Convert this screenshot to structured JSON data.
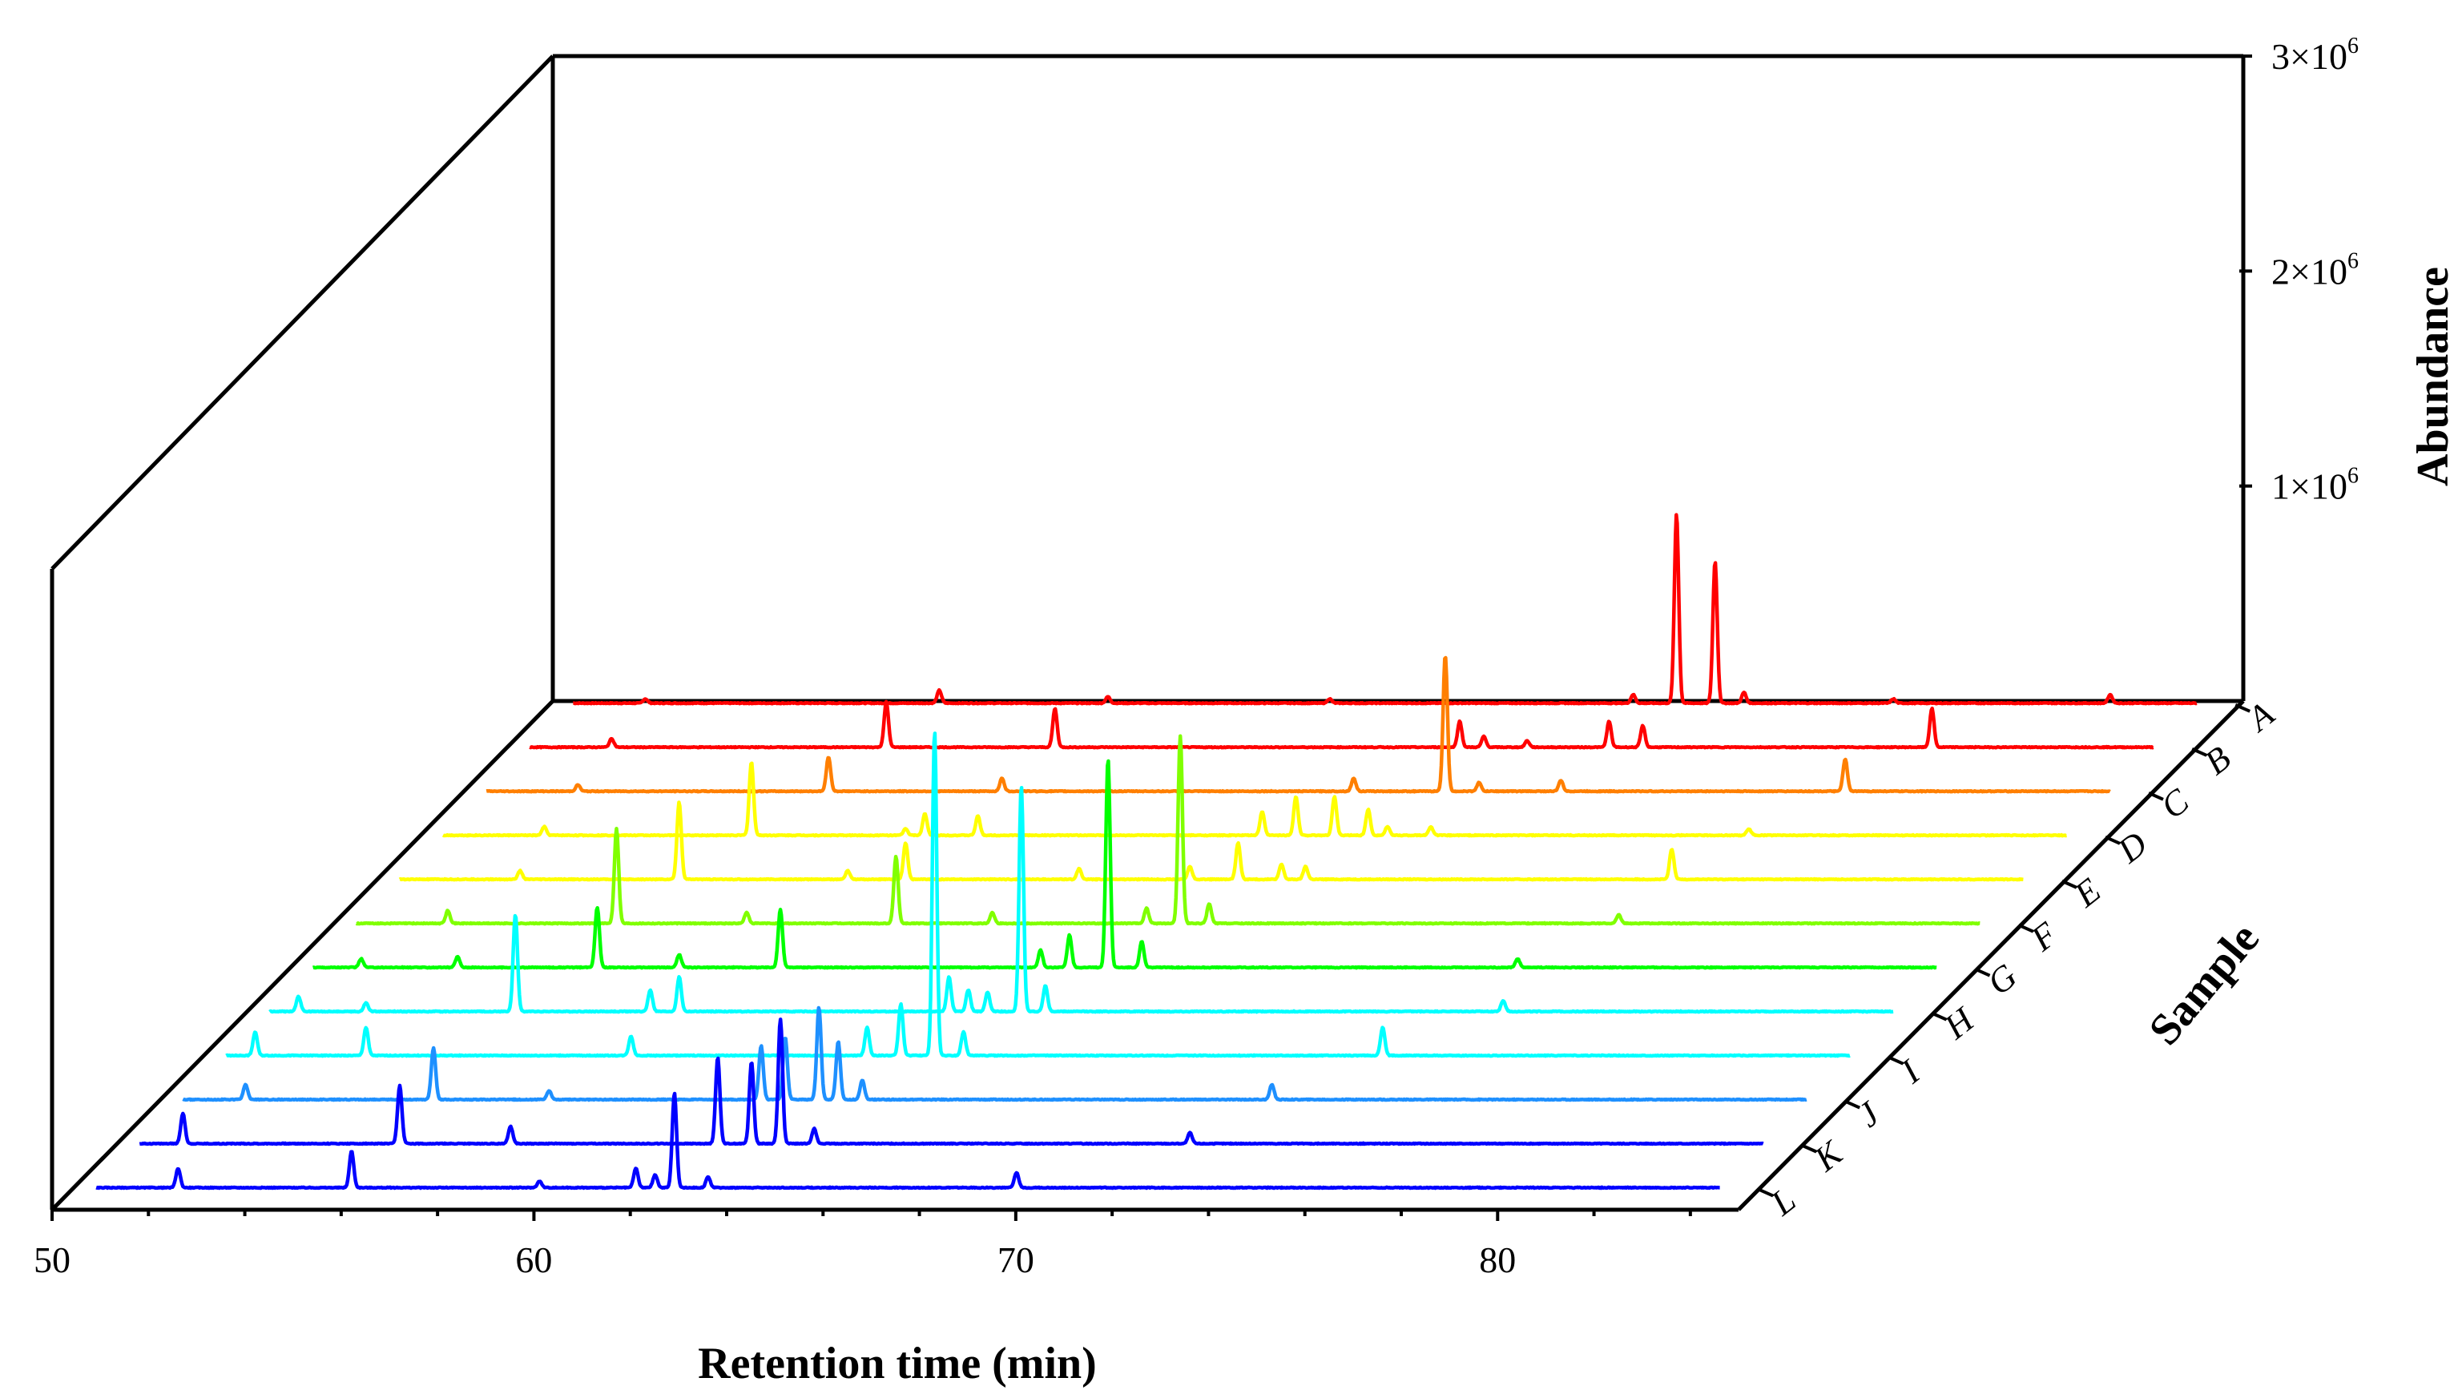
{
  "chart_data": {
    "type": "line",
    "subtype": "3d-waterfall",
    "title": "",
    "xlabel": "Retention time (min)",
    "ylabel": "Sample",
    "zlabel": "Abundance",
    "xlim": [
      50,
      85
    ],
    "zlim": [
      0,
      3000000
    ],
    "x_ticks": [
      50,
      60,
      70,
      80
    ],
    "z_ticks": [
      {
        "value": 1000000,
        "base": "1×10",
        "exp": "6"
      },
      {
        "value": 2000000,
        "base": "2×10",
        "exp": "6"
      },
      {
        "value": 3000000,
        "base": "3×10",
        "exp": "6"
      }
    ],
    "x_range_trace": [
      50.5,
      84.2
    ],
    "series": [
      {
        "name": "A",
        "color": "#ff0000",
        "peaks": [
          [
            52.0,
            0.02
          ],
          [
            58.1,
            0.06
          ],
          [
            61.6,
            0.03
          ],
          [
            66.2,
            0.02
          ],
          [
            72.5,
            0.04
          ],
          [
            73.4,
            0.88
          ],
          [
            74.2,
            0.66
          ],
          [
            74.8,
            0.05
          ],
          [
            77.9,
            0.02
          ],
          [
            82.4,
            0.04
          ]
        ]
      },
      {
        "name": "B",
        "color": "#ff0000",
        "peaks": [
          [
            52.2,
            0.04
          ],
          [
            57.9,
            0.21
          ],
          [
            61.4,
            0.18
          ],
          [
            69.8,
            0.12
          ],
          [
            70.3,
            0.05
          ],
          [
            71.2,
            0.03
          ],
          [
            72.9,
            0.12
          ],
          [
            73.6,
            0.1
          ],
          [
            79.6,
            0.18
          ]
        ]
      },
      {
        "name": "C",
        "color": "#ff7f00",
        "peaks": [
          [
            52.4,
            0.03
          ],
          [
            57.6,
            0.16
          ],
          [
            61.2,
            0.06
          ],
          [
            68.5,
            0.06
          ],
          [
            70.4,
            0.63
          ],
          [
            71.1,
            0.04
          ],
          [
            72.8,
            0.05
          ],
          [
            78.7,
            0.15
          ]
        ]
      },
      {
        "name": "D",
        "color": "#ffff00",
        "peaks": [
          [
            52.6,
            0.04
          ],
          [
            56.9,
            0.34
          ],
          [
            60.1,
            0.03
          ],
          [
            60.5,
            0.1
          ],
          [
            61.6,
            0.09
          ],
          [
            67.5,
            0.11
          ],
          [
            68.2,
            0.18
          ],
          [
            69.0,
            0.18
          ],
          [
            69.7,
            0.12
          ],
          [
            70.1,
            0.04
          ],
          [
            71.0,
            0.04
          ],
          [
            77.6,
            0.03
          ]
        ]
      },
      {
        "name": "E",
        "color": "#ffff00",
        "peaks": [
          [
            53.0,
            0.04
          ],
          [
            56.3,
            0.36
          ],
          [
            59.8,
            0.04
          ],
          [
            61.0,
            0.17
          ],
          [
            64.6,
            0.05
          ],
          [
            66.9,
            0.06
          ],
          [
            67.9,
            0.17
          ],
          [
            68.8,
            0.07
          ],
          [
            69.3,
            0.06
          ],
          [
            76.9,
            0.14
          ]
        ]
      },
      {
        "name": "F",
        "color": "#80ff00",
        "peaks": [
          [
            52.4,
            0.06
          ],
          [
            55.9,
            0.44
          ],
          [
            58.6,
            0.05
          ],
          [
            61.7,
            0.31
          ],
          [
            63.7,
            0.05
          ],
          [
            66.9,
            0.07
          ],
          [
            67.6,
            0.87
          ],
          [
            68.2,
            0.09
          ],
          [
            76.7,
            0.04
          ]
        ]
      },
      {
        "name": "G",
        "color": "#00ff00",
        "peaks": [
          [
            51.5,
            0.04
          ],
          [
            53.5,
            0.05
          ],
          [
            56.4,
            0.28
          ],
          [
            58.1,
            0.06
          ],
          [
            60.2,
            0.27
          ],
          [
            65.6,
            0.08
          ],
          [
            66.2,
            0.15
          ],
          [
            67.0,
            0.97
          ],
          [
            67.7,
            0.12
          ],
          [
            75.5,
            0.04
          ]
        ]
      },
      {
        "name": "H",
        "color": "#00ffff",
        "peaks": [
          [
            51.1,
            0.07
          ],
          [
            52.5,
            0.04
          ],
          [
            55.6,
            0.45
          ],
          [
            58.4,
            0.1
          ],
          [
            59.0,
            0.16
          ],
          [
            64.6,
            0.16
          ],
          [
            65.0,
            0.1
          ],
          [
            65.4,
            0.09
          ],
          [
            66.1,
            1.05
          ],
          [
            66.6,
            0.12
          ],
          [
            76.1,
            0.05
          ]
        ]
      },
      {
        "name": "I",
        "color": "#00ffff",
        "peaks": [
          [
            51.1,
            0.11
          ],
          [
            53.4,
            0.13
          ],
          [
            58.9,
            0.09
          ],
          [
            63.8,
            0.13
          ],
          [
            64.5,
            0.24
          ],
          [
            65.2,
            1.51
          ],
          [
            65.8,
            0.11
          ],
          [
            74.5,
            0.13
          ]
        ]
      },
      {
        "name": "J",
        "color": "#1e90ff",
        "peaks": [
          [
            51.8,
            0.07
          ],
          [
            55.7,
            0.24
          ],
          [
            58.1,
            0.04
          ],
          [
            62.5,
            0.25
          ],
          [
            63.0,
            0.29
          ],
          [
            63.7,
            0.43
          ],
          [
            64.1,
            0.27
          ],
          [
            64.6,
            0.09
          ],
          [
            73.1,
            0.07
          ]
        ]
      },
      {
        "name": "K",
        "color": "#0000ff",
        "peaks": [
          [
            51.4,
            0.14
          ],
          [
            55.9,
            0.27
          ],
          [
            58.2,
            0.08
          ],
          [
            62.5,
            0.4
          ],
          [
            63.2,
            0.38
          ],
          [
            63.8,
            0.58
          ],
          [
            64.5,
            0.07
          ],
          [
            72.3,
            0.05
          ]
        ]
      },
      {
        "name": "L",
        "color": "#0000ff",
        "peaks": [
          [
            52.2,
            0.09
          ],
          [
            55.8,
            0.17
          ],
          [
            59.7,
            0.03
          ],
          [
            61.7,
            0.09
          ],
          [
            62.1,
            0.06
          ],
          [
            62.5,
            0.44
          ],
          [
            63.2,
            0.05
          ],
          [
            69.6,
            0.07
          ]
        ]
      }
    ]
  }
}
